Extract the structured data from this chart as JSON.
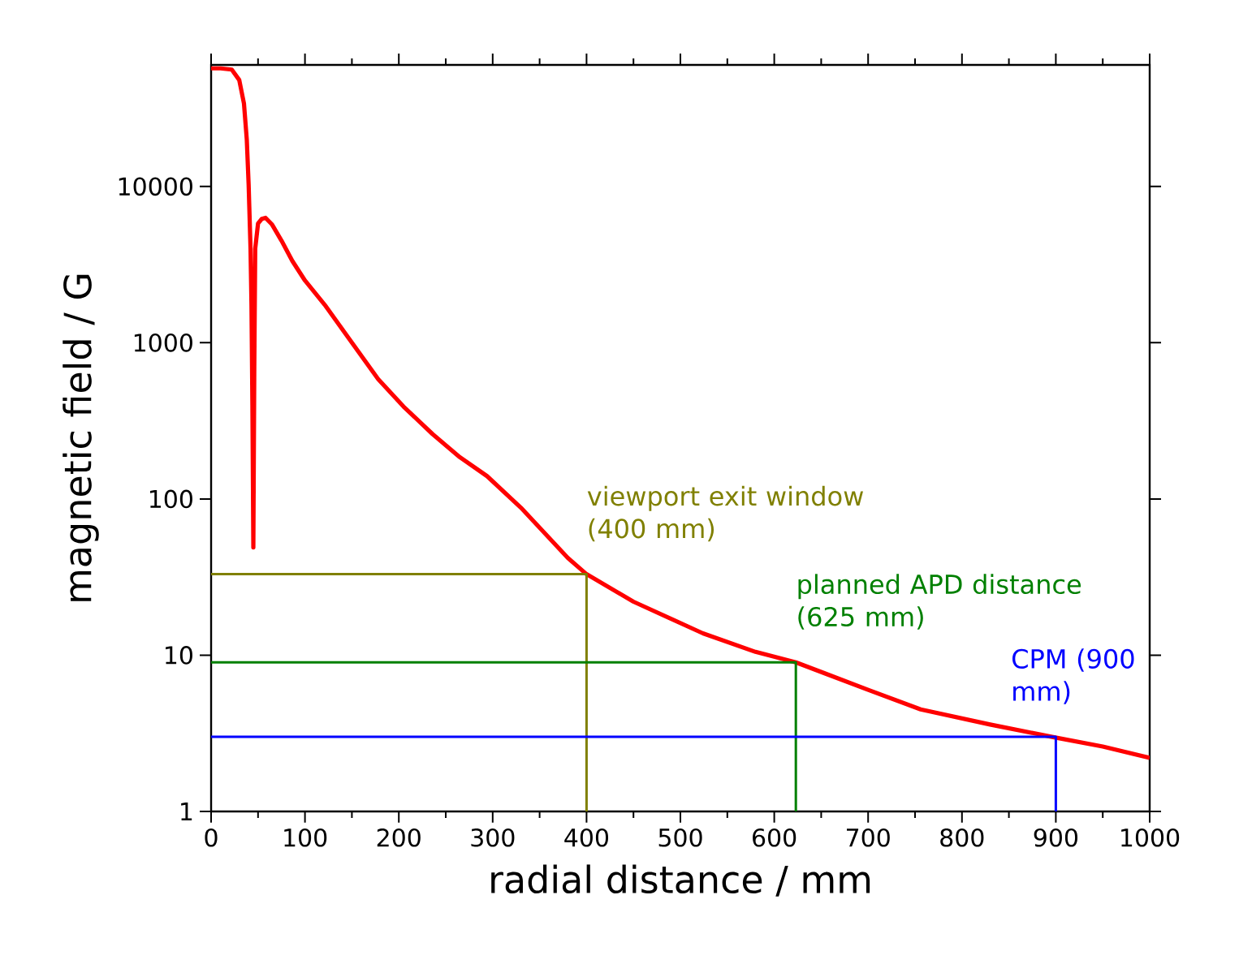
{
  "chart_data": {
    "type": "line",
    "xlabel": "radial distance / mm",
    "ylabel": "magnetic field / G",
    "log": "y",
    "xlim": [
      0,
      1000
    ],
    "xticks": [
      0,
      100,
      200,
      300,
      400,
      500,
      600,
      700,
      800,
      900,
      1000
    ],
    "ylim": [
      1,
      60000
    ],
    "yticks": [
      1,
      10,
      100,
      1000,
      10000
    ],
    "series": [
      {
        "color": "#ff0000",
        "x": [
          0,
          10,
          22,
          30,
          35,
          38,
          40,
          42,
          43,
          44,
          45,
          46,
          47,
          50,
          54,
          58,
          65,
          75,
          86.5,
          100,
          121,
          150,
          178,
          205,
          236,
          265,
          294,
          330,
          380,
          400,
          450,
          524,
          580,
          623,
          700,
          756,
          830,
          896,
          950,
          1000
        ],
        "values": [
          57000,
          57000,
          56000,
          48000,
          34000,
          20000,
          10200,
          4000,
          1750,
          400,
          49,
          700,
          4000,
          5800,
          6200,
          6300,
          5700,
          4500,
          3340,
          2500,
          1750,
          1000,
          585,
          390,
          260,
          185,
          140,
          88,
          42,
          33,
          22,
          13.8,
          10.5,
          9,
          6,
          4.5,
          3.6,
          3,
          2.6,
          2.2
        ]
      },
      {
        "color": "#808000",
        "x": [
          0,
          400,
          400
        ],
        "values": [
          33,
          33,
          1
        ]
      },
      {
        "color": "#008000",
        "x": [
          0,
          623,
          623
        ],
        "values": [
          9,
          9,
          1
        ]
      },
      {
        "color": "#0000ff",
        "x": [
          0,
          900,
          900
        ],
        "values": [
          3,
          3,
          1
        ]
      }
    ],
    "annotations": [
      "viewport exit window (400 mm)",
      "planned APD distance (625 mm)",
      "CPM (900 mm)"
    ]
  }
}
